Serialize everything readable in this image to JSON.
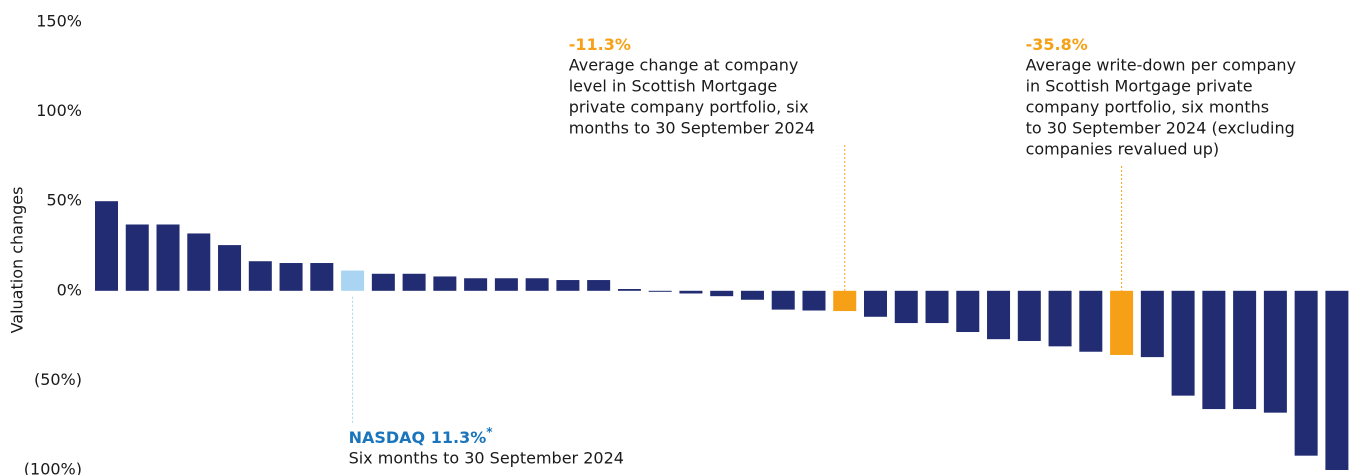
{
  "chart_data": {
    "type": "bar",
    "y_label": "Valuation changes",
    "ylim": [
      -100,
      150
    ],
    "yticks": [
      {
        "value": 150,
        "label": "150%"
      },
      {
        "value": 100,
        "label": "100%"
      },
      {
        "value": 50,
        "label": "50%"
      },
      {
        "value": 0,
        "label": "0%"
      },
      {
        "value": -50,
        "label": "(50%)"
      },
      {
        "value": -100,
        "label": "(100%)"
      }
    ],
    "values": [
      50,
      37,
      37,
      32,
      25.5,
      16.5,
      15.5,
      15.5,
      11.3,
      9.5,
      9.5,
      8,
      7,
      7,
      7,
      6,
      6,
      1,
      -0.5,
      -1.5,
      -3,
      -5,
      -10.5,
      -11,
      -11.3,
      -14.5,
      -18,
      -18,
      -23,
      -27,
      -28,
      -31,
      -34,
      -35.8,
      -37,
      -58.5,
      -66,
      -66,
      -68,
      -92,
      -100
    ],
    "value_labels": [
      null,
      null,
      null,
      null,
      null,
      null,
      null,
      null,
      "11.3%",
      null,
      null,
      null,
      null,
      null,
      null,
      null,
      null,
      null,
      null,
      null,
      null,
      null,
      null,
      null,
      "-11.3%",
      null,
      null,
      null,
      null,
      null,
      null,
      null,
      null,
      "-35.8%",
      null,
      null,
      null,
      null,
      null,
      null,
      null
    ],
    "color": "#212c72",
    "colors": [
      null,
      null,
      null,
      null,
      null,
      null,
      null,
      null,
      "#a9d5f2",
      null,
      null,
      null,
      null,
      null,
      null,
      null,
      null,
      null,
      null,
      null,
      null,
      null,
      null,
      null,
      "#f5a016",
      null,
      null,
      null,
      null,
      null,
      null,
      null,
      null,
      "#f5a016",
      null,
      null,
      null,
      null,
      null,
      null,
      null
    ],
    "callouts": [
      null,
      null,
      null,
      null,
      null,
      null,
      null,
      null,
      {
        "prefix": "NASDAQ",
        "suffix": "*",
        "label_color": "#1a75bc",
        "text": [
          "Six months to 30 September 2024"
        ]
      },
      null,
      null,
      null,
      null,
      null,
      null,
      null,
      null,
      null,
      null,
      null,
      null,
      null,
      null,
      null,
      {
        "label_color": "#f5a016",
        "text": [
          "Average change at company",
          "level in Scottish Mortgage",
          "private company portfolio, six",
          "months to 30 September 2024"
        ]
      },
      null,
      null,
      null,
      null,
      null,
      null,
      null,
      null,
      {
        "label_color": "#f5a016",
        "text": [
          "Average write-down per company",
          "in Scottish Mortgage private",
          "company portfolio, six months",
          "to 30 September 2024 (excluding",
          "companies revalued up)"
        ]
      },
      null,
      null,
      null,
      null,
      null,
      null,
      null
    ]
  }
}
